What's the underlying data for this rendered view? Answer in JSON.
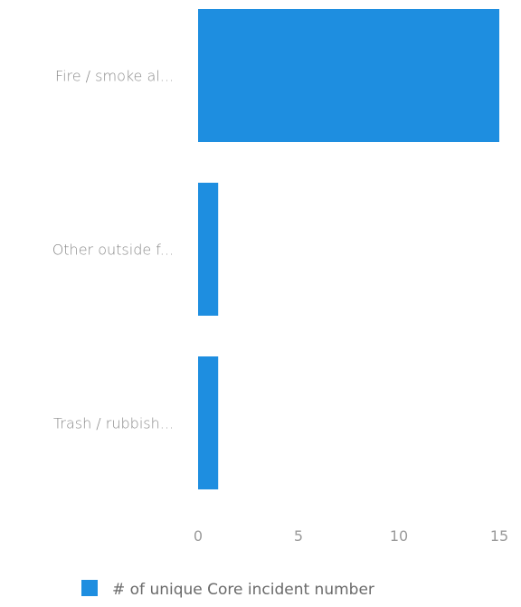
{
  "chart_data": {
    "type": "bar",
    "orientation": "horizontal",
    "categories": [
      "Fire / smoke al...",
      "Other outside f...",
      "Trash / rubbish..."
    ],
    "series": [
      {
        "name": "# of unique Core incident number",
        "values": [
          15,
          1,
          1
        ]
      }
    ],
    "xlim": [
      0,
      15
    ],
    "xticks": [
      0,
      5,
      10,
      15
    ],
    "grid": false,
    "legend": "bottom",
    "colors": {
      "bar": "#1e8ee0",
      "legend_swatch": "#1e8ee0"
    }
  }
}
